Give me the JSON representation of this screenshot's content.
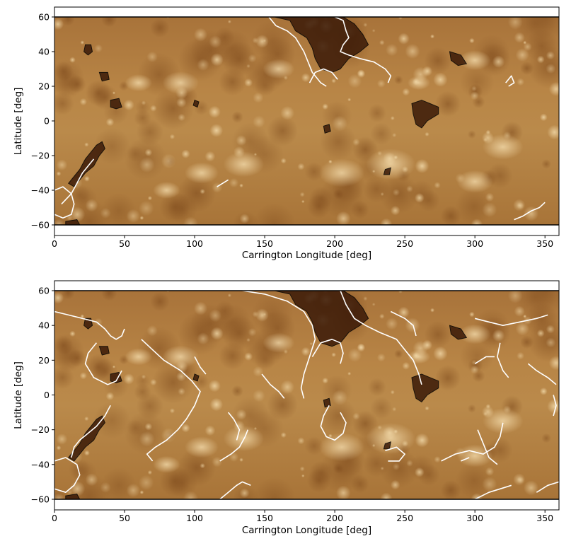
{
  "figure": {
    "panels": [
      {
        "id": "top",
        "xlabel": "Carrington Longitude [deg]",
        "ylabel": "Latitude [deg]",
        "xlim": [
          0,
          360
        ],
        "ylim": [
          -65,
          62
        ],
        "image_lat_extent": [
          -60,
          60
        ],
        "xticks": [
          0,
          50,
          100,
          150,
          200,
          250,
          300,
          350
        ],
        "yticks": [
          -60,
          -40,
          -20,
          0,
          20,
          40,
          60
        ],
        "xtick_labels": [
          "0",
          "50",
          "100",
          "150",
          "200",
          "250",
          "300",
          "350"
        ],
        "ytick_labels": [
          "−60",
          "−40",
          "−20",
          "0",
          "20",
          "40",
          "60"
        ]
      },
      {
        "id": "bottom",
        "xlabel": "Carrington Longitude [deg]",
        "ylabel": "Latitude [deg]",
        "xlim": [
          0,
          360
        ],
        "ylim": [
          -65,
          62
        ],
        "image_lat_extent": [
          -60,
          60
        ],
        "xticks": [
          0,
          50,
          100,
          150,
          200,
          250,
          300,
          350
        ],
        "yticks": [
          -60,
          -40,
          -20,
          0,
          20,
          40,
          60
        ],
        "xtick_labels": [
          "0",
          "50",
          "100",
          "150",
          "200",
          "250",
          "300",
          "350"
        ],
        "ytick_labels": [
          "−60",
          "−40",
          "−20",
          "0",
          "20",
          "40",
          "60"
        ]
      }
    ],
    "colors": {
      "map_base": "#b07b3b",
      "map_bright": "#f2d6a2",
      "map_dark": "#6e3e16",
      "coronal_hole_fill": "#3b1a08",
      "outline_black": "#000000",
      "outline_white": "#ffffff"
    }
  }
}
